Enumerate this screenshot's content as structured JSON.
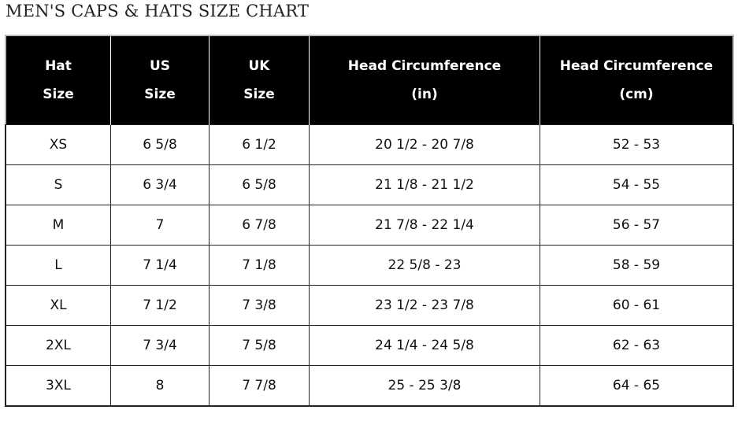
{
  "title": "MEN'S CAPS & HATS SIZE CHART",
  "table": {
    "headers": [
      [
        "Hat",
        "Size"
      ],
      [
        "US",
        "Size"
      ],
      [
        "UK",
        "Size"
      ],
      [
        "Head Circumference",
        "(in)"
      ],
      [
        "Head Circumference",
        "(cm)"
      ]
    ],
    "rows": [
      [
        "XS",
        "6 5/8",
        "6 1/2",
        "20 1/2 - 20 7/8",
        "52 - 53"
      ],
      [
        "S",
        "6 3/4",
        "6 5/8",
        "21 1/8 - 21 1/2",
        "54 - 55"
      ],
      [
        "M",
        "7",
        "6 7/8",
        "21 7/8 - 22 1/4",
        "56 - 57"
      ],
      [
        "L",
        "7 1/4",
        "7 1/8",
        "22 5/8 - 23",
        "58 - 59"
      ],
      [
        "XL",
        "7 1/2",
        "7 3/8",
        "23 1/2 - 23 7/8",
        "60 - 61"
      ],
      [
        "2XL",
        "7 3/4",
        "7 5/8",
        "24 1/4 - 24 5/8",
        "62 - 63"
      ],
      [
        "3XL",
        "8",
        "7 7/8",
        "25 - 25 3/8",
        "64 - 65"
      ]
    ]
  }
}
